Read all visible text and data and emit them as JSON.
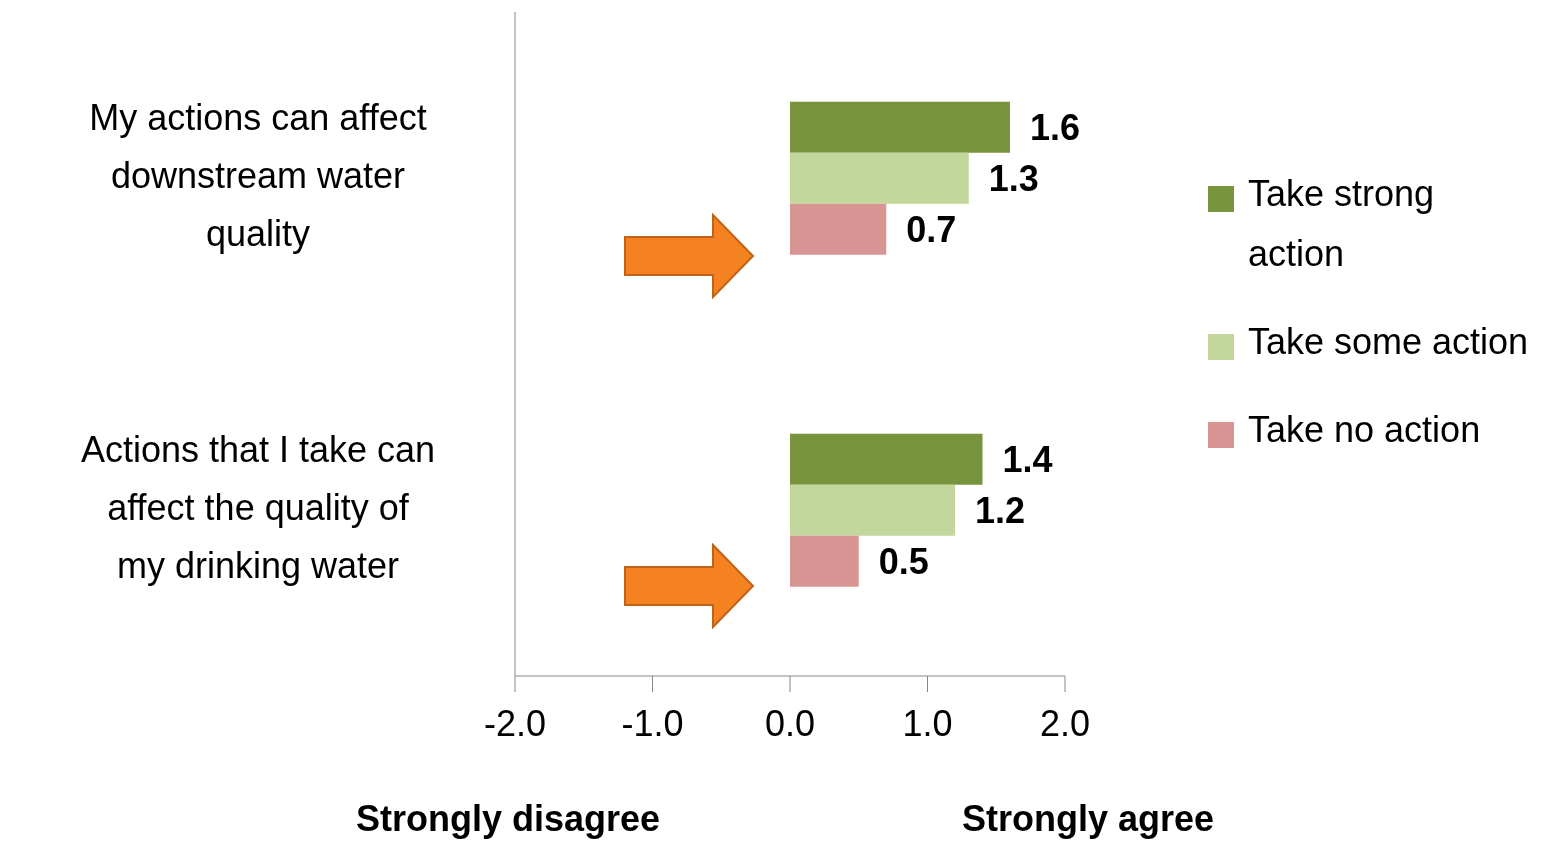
{
  "chart_data": {
    "type": "bar",
    "orientation": "horizontal",
    "categories": [
      "My actions can affect downstream water quality",
      "Actions that I take can affect the quality of my drinking water"
    ],
    "series": [
      {
        "name": "Take strong action",
        "color": "#77933c",
        "values": [
          1.6,
          1.4
        ]
      },
      {
        "name": "Take some action",
        "color": "#c3d69b",
        "values": [
          1.3,
          1.2
        ]
      },
      {
        "name": "Take no action",
        "color": "#d99594",
        "values": [
          0.7,
          0.5
        ]
      }
    ],
    "xlim": [
      -2,
      2
    ],
    "xticks": [
      {
        "value": -2,
        "label": "-2.0"
      },
      {
        "value": -1,
        "label": "-1.0"
      },
      {
        "value": 0,
        "label": "0.0"
      },
      {
        "value": 1,
        "label": "1.0"
      },
      {
        "value": 2,
        "label": "2.0"
      }
    ],
    "data_labels": true,
    "grid": false,
    "legend": "right",
    "annotations": [
      "Strongly disagree",
      "Strongly agree"
    ]
  }
}
